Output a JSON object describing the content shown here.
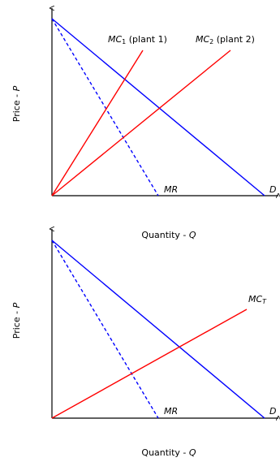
{
  "colors": {
    "axis": "#000000",
    "demand": "#0000ff",
    "marginal_revenue": "#0000ff",
    "marginal_cost": "#ff0000"
  },
  "top_panel": {
    "y_axis_label": "Price - ",
    "y_axis_var": "P",
    "x_axis_label": "Quantity - ",
    "x_axis_var": "Q",
    "mc1_main": "MC",
    "mc1_sub": "1",
    "mc1_suffix": " (plant 1)",
    "mc2_main": "MC",
    "mc2_sub": "2",
    "mc2_suffix": " (plant 2)",
    "mr_label": "MR",
    "demand_label": "D"
  },
  "bottom_panel": {
    "y_axis_label": "Price - ",
    "y_axis_var": "P",
    "x_axis_label": "Quantity - ",
    "x_axis_var": "Q",
    "mct_main": "MC",
    "mct_sub": "T",
    "mr_label": "MR",
    "demand_label": "D"
  }
}
